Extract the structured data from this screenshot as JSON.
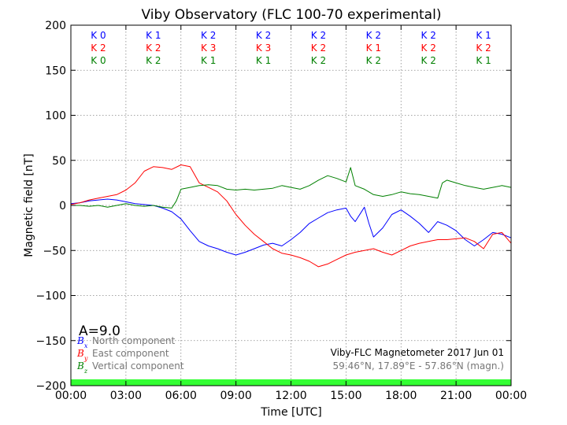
{
  "chart_data": {
    "type": "line",
    "title": "Viby Observatory (FLC 100-70 experimental)",
    "xlabel": "Time [UTC]",
    "ylabel": "Magnetic field [nT]",
    "xlim": [
      0,
      24
    ],
    "ylim": [
      -200,
      200
    ],
    "x_ticks": [
      "00:00",
      "03:00",
      "06:00",
      "09:00",
      "12:00",
      "15:00",
      "18:00",
      "21:00",
      "00:00"
    ],
    "y_ticks": [
      "200",
      "150",
      "100",
      "50",
      "0",
      "−50",
      "−100",
      "−150",
      "−200"
    ],
    "grid": true,
    "k_indices": {
      "x": [
        1.5,
        4.5,
        7.5,
        10.5,
        13.5,
        16.5,
        19.5,
        22.5
      ],
      "rows": [
        {
          "color": "#0000ff",
          "labels": [
            "K 0",
            "K 1",
            "K 2",
            "K 2",
            "K 2",
            "K 2",
            "K 2",
            "K 1"
          ]
        },
        {
          "color": "#ff0000",
          "labels": [
            "K 2",
            "K 2",
            "K 3",
            "K 3",
            "K 2",
            "K 1",
            "K 2",
            "K 2"
          ]
        },
        {
          "color": "#008000",
          "labels": [
            "K 0",
            "K 2",
            "K 1",
            "K 1",
            "K 2",
            "K 2",
            "K 2",
            "K 1"
          ]
        }
      ]
    },
    "series": [
      {
        "color": "#0000ff",
        "x": [
          0,
          0.5,
          1,
          1.5,
          2,
          2.5,
          3,
          3.5,
          4,
          4.5,
          5,
          5.5,
          6,
          6.5,
          7,
          7.5,
          8,
          8.5,
          9,
          9.5,
          10,
          10.5,
          11,
          11.5,
          12,
          12.5,
          13,
          13.5,
          14,
          14.5,
          15,
          15.25,
          15.5,
          16,
          16.25,
          16.5,
          17,
          17.5,
          18,
          18.5,
          19,
          19.5,
          20,
          20.5,
          21,
          21.5,
          22,
          22.5,
          23,
          23.5,
          24
        ],
        "y": [
          2,
          3,
          5,
          6,
          7,
          6,
          4,
          2,
          1,
          0,
          -3,
          -7,
          -15,
          -28,
          -40,
          -45,
          -48,
          -52,
          -55,
          -52,
          -48,
          -44,
          -42,
          -45,
          -38,
          -30,
          -20,
          -14,
          -8,
          -5,
          -3,
          -12,
          -18,
          -2,
          -20,
          -35,
          -25,
          -10,
          -5,
          -12,
          -20,
          -30,
          -18,
          -22,
          -28,
          -38,
          -45,
          -38,
          -30,
          -32,
          -36
        ]
      },
      {
        "color": "#ff0000",
        "x": [
          0,
          0.5,
          1,
          1.5,
          2,
          2.5,
          3,
          3.5,
          4,
          4.5,
          5,
          5.5,
          6,
          6.5,
          7,
          7.5,
          8,
          8.5,
          9,
          9.5,
          10,
          10.5,
          11,
          11.5,
          12,
          12.5,
          13,
          13.5,
          14,
          14.5,
          15,
          15.5,
          16,
          16.5,
          17,
          17.5,
          18,
          18.5,
          19,
          19.5,
          20,
          20.5,
          21,
          21.5,
          22,
          22.5,
          23,
          23.5,
          24
        ],
        "y": [
          1,
          3,
          6,
          8,
          10,
          12,
          17,
          25,
          38,
          43,
          42,
          40,
          45,
          43,
          25,
          20,
          15,
          5,
          -10,
          -22,
          -32,
          -40,
          -48,
          -53,
          -55,
          -58,
          -62,
          -68,
          -65,
          -60,
          -55,
          -52,
          -50,
          -48,
          -52,
          -55,
          -50,
          -45,
          -42,
          -40,
          -38,
          -38,
          -37,
          -36,
          -40,
          -48,
          -32,
          -30,
          -42
        ]
      },
      {
        "color": "#008000",
        "x": [
          0,
          0.5,
          1,
          1.5,
          2,
          2.5,
          3,
          3.5,
          4,
          4.5,
          5,
          5.5,
          5.75,
          6,
          6.5,
          7,
          7.5,
          8,
          8.5,
          9,
          9.5,
          10,
          10.5,
          11,
          11.5,
          12,
          12.5,
          13,
          13.5,
          14,
          14.5,
          15,
          15.25,
          15.5,
          16,
          16.5,
          17,
          17.5,
          18,
          18.5,
          19,
          19.5,
          20,
          20.25,
          20.5,
          21,
          21.5,
          22,
          22.5,
          23,
          23.5,
          24
        ],
        "y": [
          0,
          0,
          -1,
          0,
          -2,
          0,
          2,
          0,
          -1,
          0,
          -2,
          -3,
          5,
          18,
          20,
          22,
          23,
          22,
          18,
          17,
          18,
          17,
          18,
          19,
          22,
          20,
          18,
          22,
          28,
          33,
          30,
          26,
          42,
          22,
          18,
          12,
          10,
          12,
          15,
          13,
          12,
          10,
          8,
          25,
          28,
          25,
          22,
          20,
          18,
          20,
          22,
          20
        ]
      }
    ],
    "legend": {
      "placement": "bottom-left",
      "entries": [
        {
          "symbol": "Bx",
          "label": "North component",
          "color": "#0000ff"
        },
        {
          "symbol": "By",
          "label": "East component",
          "color": "#ff0000"
        },
        {
          "symbol": "Bz",
          "label": "Vertical component",
          "color": "#008000"
        }
      ]
    },
    "a_index": "A=9.0",
    "station_info": "Viby-FLC Magnetometer 2017 Jun 01",
    "coordinates": "59.46°N, 17.89°E - 57.86°N (magn.)",
    "status_bar_color": "#33ff33"
  }
}
